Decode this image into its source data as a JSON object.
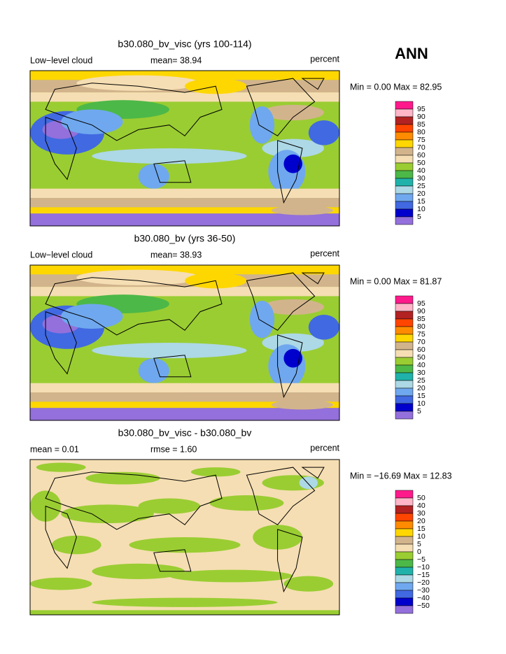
{
  "header": {
    "season": "ANN"
  },
  "colorbar_colors": [
    "#ff1a8c",
    "#ffb6c8",
    "#b22222",
    "#ff4500",
    "#ff8c00",
    "#ffd700",
    "#d2b48c",
    "#f5deb3",
    "#9acd32",
    "#4cb848",
    "#20b2aa",
    "#add8e6",
    "#6fa8ee",
    "#4169e1",
    "#0000cd",
    "#9370db"
  ],
  "panels": [
    {
      "title": "b30.080_bv_visc (yrs 100-114)",
      "left_label": "Low−level cloud",
      "mean_label": "mean=  38.94",
      "unit": "percent",
      "minmax": "Min =   0.00 Max =  82.95",
      "kind": "mean",
      "colorbar_labels": [
        "95",
        "90",
        "85",
        "80",
        "75",
        "70",
        "60",
        "50",
        "40",
        "30",
        "25",
        "20",
        "15",
        "10",
        "5"
      ]
    },
    {
      "title": "b30.080_bv (yrs 36-50)",
      "left_label": "Low−level cloud",
      "mean_label": "mean=  38.93",
      "unit": "percent",
      "minmax": "Min =   0.00 Max =  81.87",
      "kind": "mean",
      "colorbar_labels": [
        "95",
        "90",
        "85",
        "80",
        "75",
        "70",
        "60",
        "50",
        "40",
        "30",
        "25",
        "20",
        "15",
        "10",
        "5"
      ]
    },
    {
      "title": "b30.080_bv_visc - b30.080_bv",
      "left_label": "mean =   0.01",
      "mean_label": "rmse =   1.60",
      "unit": "percent",
      "minmax": "Min = −16.69 Max =  12.83",
      "kind": "diff",
      "colorbar_labels": [
        "50",
        "40",
        "30",
        "20",
        "15",
        "10",
        "5",
        "0",
        "−5",
        "−10",
        "−15",
        "−20",
        "−30",
        "−40",
        "−50"
      ]
    }
  ]
}
